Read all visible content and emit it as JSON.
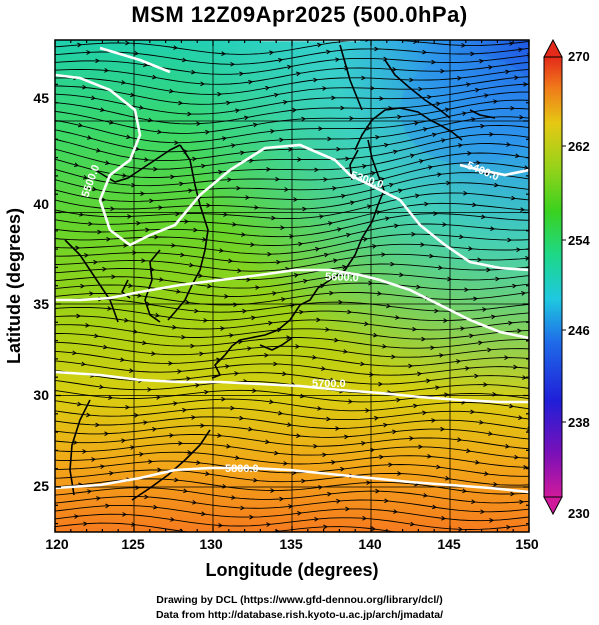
{
  "title": "MSM 12Z09Apr2025 (500.0hPa)",
  "credits": {
    "line1": "Drawing by DCL (https://www.gfd-dennou.org/library/dcl/)",
    "line2": "Data from http://database.rish.kyoto-u.ac.jp/arch/jmadata/"
  },
  "axes": {
    "xlabel": "Longitude (degrees)",
    "ylabel": "Latitude  (degrees)",
    "x_ticks": [
      "120",
      "125",
      "130",
      "135",
      "140",
      "145",
      "150"
    ],
    "y_ticks": [
      "25",
      "30",
      "35",
      "40",
      "45"
    ]
  },
  "colorbar": {
    "ticks": [
      "270",
      "262",
      "254",
      "246",
      "238",
      "230"
    ],
    "min": 230,
    "max": 270
  },
  "contours": [
    {
      "label": "5300.0"
    },
    {
      "label": "5400.0"
    },
    {
      "label": "5500.0"
    },
    {
      "label": "5600.0"
    },
    {
      "label": "5700.0"
    },
    {
      "label": "5800.0"
    }
  ],
  "colors": {
    "contour": "#ffffff",
    "streamline": "#000000",
    "coastline": "#000000"
  }
}
